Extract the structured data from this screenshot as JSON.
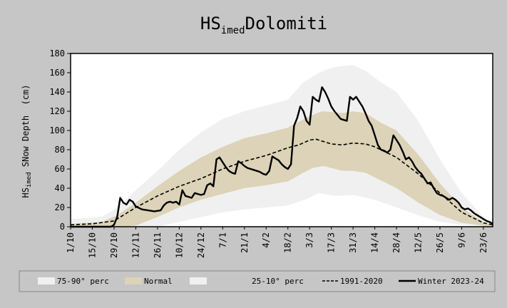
{
  "chart_data": {
    "type": "line",
    "title_main": "HS",
    "title_sub": "imed",
    "title_rest": "Dolomiti",
    "ylabel_main": "HS",
    "ylabel_sub": "imed",
    "ylabel_rest": " SNow Depth  (cm)",
    "ylim": [
      0,
      180
    ],
    "yticks": [
      0,
      20,
      40,
      60,
      80,
      100,
      120,
      140,
      160,
      180
    ],
    "xlim": [
      0,
      272
    ],
    "xticks": [
      {
        "label": "1/10",
        "day": 0
      },
      {
        "label": "15/10",
        "day": 14
      },
      {
        "label": "29/10",
        "day": 28
      },
      {
        "label": "12/11",
        "day": 42
      },
      {
        "label": "26/11",
        "day": 56
      },
      {
        "label": "10/12",
        "day": 70
      },
      {
        "label": "24/12",
        "day": 84
      },
      {
        "label": "7/1",
        "day": 98
      },
      {
        "label": "21/1",
        "day": 112
      },
      {
        "label": "4/2",
        "day": 126
      },
      {
        "label": "18/2",
        "day": 140
      },
      {
        "label": "3/3",
        "day": 154
      },
      {
        "label": "17/3",
        "day": 168
      },
      {
        "label": "31/3",
        "day": 182
      },
      {
        "label": "14/4",
        "day": 196
      },
      {
        "label": "28/4",
        "day": 210
      },
      {
        "label": "12/5",
        "day": 224
      },
      {
        "label": "26/5",
        "day": 238
      },
      {
        "label": "9/6",
        "day": 252
      },
      {
        "label": "23/6",
        "day": 266
      }
    ],
    "bands": {
      "p90": [
        [
          0,
          8
        ],
        [
          20,
          10
        ],
        [
          30,
          20
        ],
        [
          42,
          38
        ],
        [
          56,
          58
        ],
        [
          70,
          80
        ],
        [
          84,
          98
        ],
        [
          98,
          112
        ],
        [
          112,
          120
        ],
        [
          126,
          126
        ],
        [
          140,
          132
        ],
        [
          150,
          150
        ],
        [
          160,
          160
        ],
        [
          170,
          166
        ],
        [
          182,
          168
        ],
        [
          190,
          162
        ],
        [
          200,
          150
        ],
        [
          210,
          140
        ],
        [
          224,
          110
        ],
        [
          238,
          70
        ],
        [
          252,
          35
        ],
        [
          266,
          10
        ],
        [
          272,
          3
        ]
      ],
      "p75": [
        [
          0,
          3
        ],
        [
          20,
          5
        ],
        [
          30,
          12
        ],
        [
          42,
          25
        ],
        [
          56,
          42
        ],
        [
          70,
          58
        ],
        [
          84,
          72
        ],
        [
          98,
          83
        ],
        [
          112,
          92
        ],
        [
          126,
          97
        ],
        [
          140,
          103
        ],
        [
          154,
          115
        ],
        [
          162,
          120
        ],
        [
          175,
          118
        ],
        [
          182,
          120
        ],
        [
          190,
          118
        ],
        [
          200,
          108
        ],
        [
          210,
          100
        ],
        [
          224,
          75
        ],
        [
          238,
          45
        ],
        [
          252,
          20
        ],
        [
          266,
          5
        ],
        [
          272,
          1
        ]
      ],
      "p25": [
        [
          0,
          0
        ],
        [
          28,
          0
        ],
        [
          42,
          1
        ],
        [
          56,
          10
        ],
        [
          70,
          20
        ],
        [
          84,
          28
        ],
        [
          98,
          34
        ],
        [
          112,
          40
        ],
        [
          126,
          43
        ],
        [
          140,
          47
        ],
        [
          150,
          56
        ],
        [
          156,
          61
        ],
        [
          163,
          63
        ],
        [
          175,
          58
        ],
        [
          182,
          58
        ],
        [
          190,
          56
        ],
        [
          200,
          48
        ],
        [
          210,
          40
        ],
        [
          224,
          25
        ],
        [
          238,
          12
        ],
        [
          252,
          4
        ],
        [
          266,
          1
        ],
        [
          272,
          0
        ]
      ],
      "p10": [
        [
          0,
          0
        ],
        [
          56,
          0
        ],
        [
          70,
          5
        ],
        [
          84,
          10
        ],
        [
          98,
          15
        ],
        [
          112,
          18
        ],
        [
          126,
          20
        ],
        [
          140,
          22
        ],
        [
          154,
          30
        ],
        [
          160,
          35
        ],
        [
          170,
          32
        ],
        [
          182,
          33
        ],
        [
          196,
          28
        ],
        [
          210,
          20
        ],
        [
          224,
          12
        ],
        [
          238,
          5
        ],
        [
          252,
          2
        ],
        [
          272,
          0
        ]
      ]
    },
    "series": [
      {
        "name": "1991-2020",
        "style": "dashed",
        "points": [
          [
            0,
            2
          ],
          [
            14,
            3
          ],
          [
            28,
            6
          ],
          [
            42,
            20
          ],
          [
            56,
            32
          ],
          [
            70,
            42
          ],
          [
            84,
            50
          ],
          [
            98,
            60
          ],
          [
            112,
            68
          ],
          [
            126,
            74
          ],
          [
            140,
            82
          ],
          [
            147,
            85
          ],
          [
            154,
            90
          ],
          [
            158,
            91
          ],
          [
            168,
            86
          ],
          [
            175,
            85
          ],
          [
            182,
            87
          ],
          [
            190,
            86
          ],
          [
            196,
            83
          ],
          [
            210,
            72
          ],
          [
            224,
            55
          ],
          [
            238,
            35
          ],
          [
            252,
            15
          ],
          [
            266,
            4
          ],
          [
            272,
            2
          ]
        ]
      },
      {
        "name": "Winter 2023-24",
        "style": "solid",
        "points": [
          [
            0,
            0
          ],
          [
            26,
            0
          ],
          [
            28,
            2
          ],
          [
            30,
            10
          ],
          [
            32,
            30
          ],
          [
            34,
            25
          ],
          [
            36,
            23
          ],
          [
            38,
            28
          ],
          [
            40,
            26
          ],
          [
            42,
            21
          ],
          [
            46,
            18
          ],
          [
            50,
            17
          ],
          [
            54,
            16
          ],
          [
            58,
            17
          ],
          [
            60,
            22
          ],
          [
            62,
            25
          ],
          [
            64,
            26
          ],
          [
            66,
            25
          ],
          [
            68,
            26
          ],
          [
            70,
            23
          ],
          [
            72,
            38
          ],
          [
            74,
            32
          ],
          [
            76,
            31
          ],
          [
            78,
            30
          ],
          [
            80,
            35
          ],
          [
            82,
            34
          ],
          [
            84,
            33
          ],
          [
            86,
            34
          ],
          [
            88,
            43
          ],
          [
            90,
            45
          ],
          [
            92,
            42
          ],
          [
            94,
            70
          ],
          [
            96,
            72
          ],
          [
            98,
            67
          ],
          [
            100,
            62
          ],
          [
            102,
            58
          ],
          [
            104,
            56
          ],
          [
            106,
            55
          ],
          [
            108,
            68
          ],
          [
            110,
            66
          ],
          [
            112,
            63
          ],
          [
            114,
            61
          ],
          [
            116,
            60
          ],
          [
            118,
            59
          ],
          [
            120,
            58
          ],
          [
            122,
            57
          ],
          [
            124,
            55
          ],
          [
            126,
            54
          ],
          [
            128,
            58
          ],
          [
            130,
            73
          ],
          [
            132,
            71
          ],
          [
            134,
            69
          ],
          [
            136,
            65
          ],
          [
            138,
            62
          ],
          [
            140,
            60
          ],
          [
            142,
            65
          ],
          [
            144,
            105
          ],
          [
            146,
            113
          ],
          [
            148,
            125
          ],
          [
            150,
            120
          ],
          [
            152,
            110
          ],
          [
            154,
            106
          ],
          [
            156,
            135
          ],
          [
            158,
            132
          ],
          [
            160,
            130
          ],
          [
            162,
            145
          ],
          [
            164,
            140
          ],
          [
            166,
            133
          ],
          [
            168,
            125
          ],
          [
            170,
            120
          ],
          [
            172,
            116
          ],
          [
            174,
            112
          ],
          [
            176,
            111
          ],
          [
            178,
            110
          ],
          [
            180,
            135
          ],
          [
            182,
            132
          ],
          [
            184,
            135
          ],
          [
            186,
            130
          ],
          [
            188,
            125
          ],
          [
            190,
            118
          ],
          [
            192,
            110
          ],
          [
            194,
            105
          ],
          [
            196,
            95
          ],
          [
            198,
            85
          ],
          [
            200,
            80
          ],
          [
            202,
            79
          ],
          [
            204,
            77
          ],
          [
            206,
            80
          ],
          [
            208,
            95
          ],
          [
            210,
            90
          ],
          [
            212,
            85
          ],
          [
            214,
            78
          ],
          [
            216,
            70
          ],
          [
            218,
            72
          ],
          [
            220,
            68
          ],
          [
            222,
            62
          ],
          [
            224,
            58
          ],
          [
            226,
            55
          ],
          [
            228,
            50
          ],
          [
            230,
            45
          ],
          [
            232,
            46
          ],
          [
            234,
            40
          ],
          [
            236,
            35
          ],
          [
            238,
            33
          ],
          [
            240,
            32
          ],
          [
            242,
            30
          ],
          [
            244,
            28
          ],
          [
            246,
            30
          ],
          [
            248,
            28
          ],
          [
            250,
            25
          ],
          [
            252,
            20
          ],
          [
            254,
            18
          ],
          [
            256,
            19
          ],
          [
            258,
            17
          ],
          [
            260,
            14
          ],
          [
            262,
            12
          ],
          [
            264,
            10
          ],
          [
            266,
            8
          ],
          [
            268,
            6
          ],
          [
            270,
            5
          ],
          [
            272,
            3
          ]
        ]
      }
    ],
    "legend": {
      "placement": "bottom",
      "items": [
        {
          "label": "75-90° perc",
          "kind": "swatch",
          "color": "#f0f0f0"
        },
        {
          "label": "Normal",
          "kind": "swatch",
          "color": "#dcd3b8"
        },
        {
          "label": "25-10° perc",
          "kind": "swatch",
          "color": "#f0f0f0"
        },
        {
          "label": "1991-2020",
          "kind": "dashed-line",
          "color": "#000000"
        },
        {
          "label": "Winter 2023-24",
          "kind": "solid-line",
          "color": "#000000"
        }
      ]
    },
    "colors": {
      "background": "#c6c6c6",
      "plot_area": "#ffffff",
      "band_outer": "#f0f0f0",
      "band_normal": "#dcd3b8",
      "line": "#000000"
    }
  }
}
